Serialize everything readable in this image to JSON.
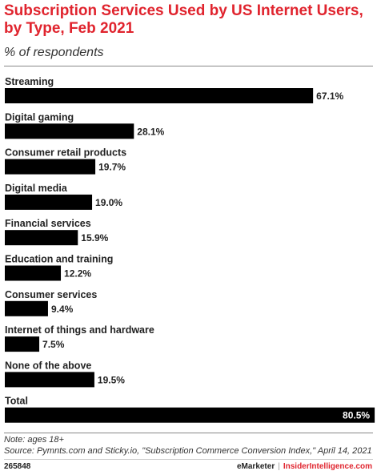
{
  "title": "Subscription Services Used by US Internet Users, by Type, Feb 2021",
  "subtitle": "% of respondents",
  "chart_data": {
    "type": "bar",
    "orientation": "horizontal",
    "categories": [
      "Streaming",
      "Digital gaming",
      "Consumer retail products",
      "Digital media",
      "Financial services",
      "Education and training",
      "Consumer services",
      "Internet of things and hardware",
      "None of the above",
      "Total"
    ],
    "values": [
      67.1,
      28.1,
      19.7,
      19.0,
      15.9,
      12.2,
      9.4,
      7.5,
      19.5,
      80.5
    ],
    "value_labels": [
      "67.1%",
      "28.1%",
      "19.7%",
      "19.0%",
      "15.9%",
      "12.2%",
      "9.4%",
      "7.5%",
      "19.5%",
      "80.5%"
    ],
    "bar_color": "#000000",
    "xlim": [
      0,
      100
    ]
  },
  "note": "Note: ages 18+",
  "source": "Source: Pymnts.com and Sticky.io, \"Subscription Commerce Conversion Index,\" April 14, 2021",
  "footer": {
    "chart_id": "265848",
    "brand_left": "eMarketer",
    "separator": "|",
    "brand_right": "InsiderIntelligence.com"
  },
  "colors": {
    "title": "#e0242e",
    "bar": "#000000",
    "text": "#222222"
  }
}
